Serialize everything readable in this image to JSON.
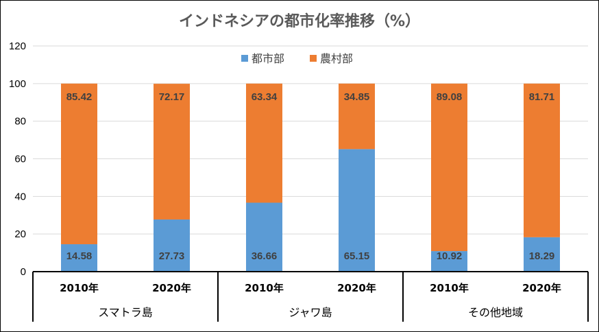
{
  "chart_data": {
    "type": "bar",
    "stacked": true,
    "title": "インドネシアの都市化率推移（%）",
    "xlabel": "",
    "ylabel": "",
    "ylim": [
      0,
      120
    ],
    "yticks": [
      "0",
      "20",
      "40",
      "60",
      "80",
      "100",
      "120"
    ],
    "grid": true,
    "legend_position": "top",
    "categories": [
      "2010年",
      "2020年",
      "2010年",
      "2020年",
      "2010年",
      "2020年"
    ],
    "groups": [
      {
        "name": "スマトラ島",
        "span": 2
      },
      {
        "name": "ジャワ島",
        "span": 2
      },
      {
        "name": "その他地域",
        "span": 2
      }
    ],
    "series": [
      {
        "name": "都市部",
        "color": "#5B9BD5",
        "values": [
          14.58,
          27.73,
          36.66,
          65.15,
          10.92,
          18.29
        ],
        "labels": [
          "14.58",
          "27.73",
          "36.66",
          "65.15",
          "10.92",
          "18.29"
        ]
      },
      {
        "name": "農村部",
        "color": "#ED7D31",
        "values": [
          85.42,
          72.17,
          63.34,
          34.85,
          89.08,
          81.71
        ],
        "labels": [
          "85.42",
          "72.17",
          "63.34",
          "34.85",
          "89.08",
          "81.71"
        ]
      }
    ]
  }
}
